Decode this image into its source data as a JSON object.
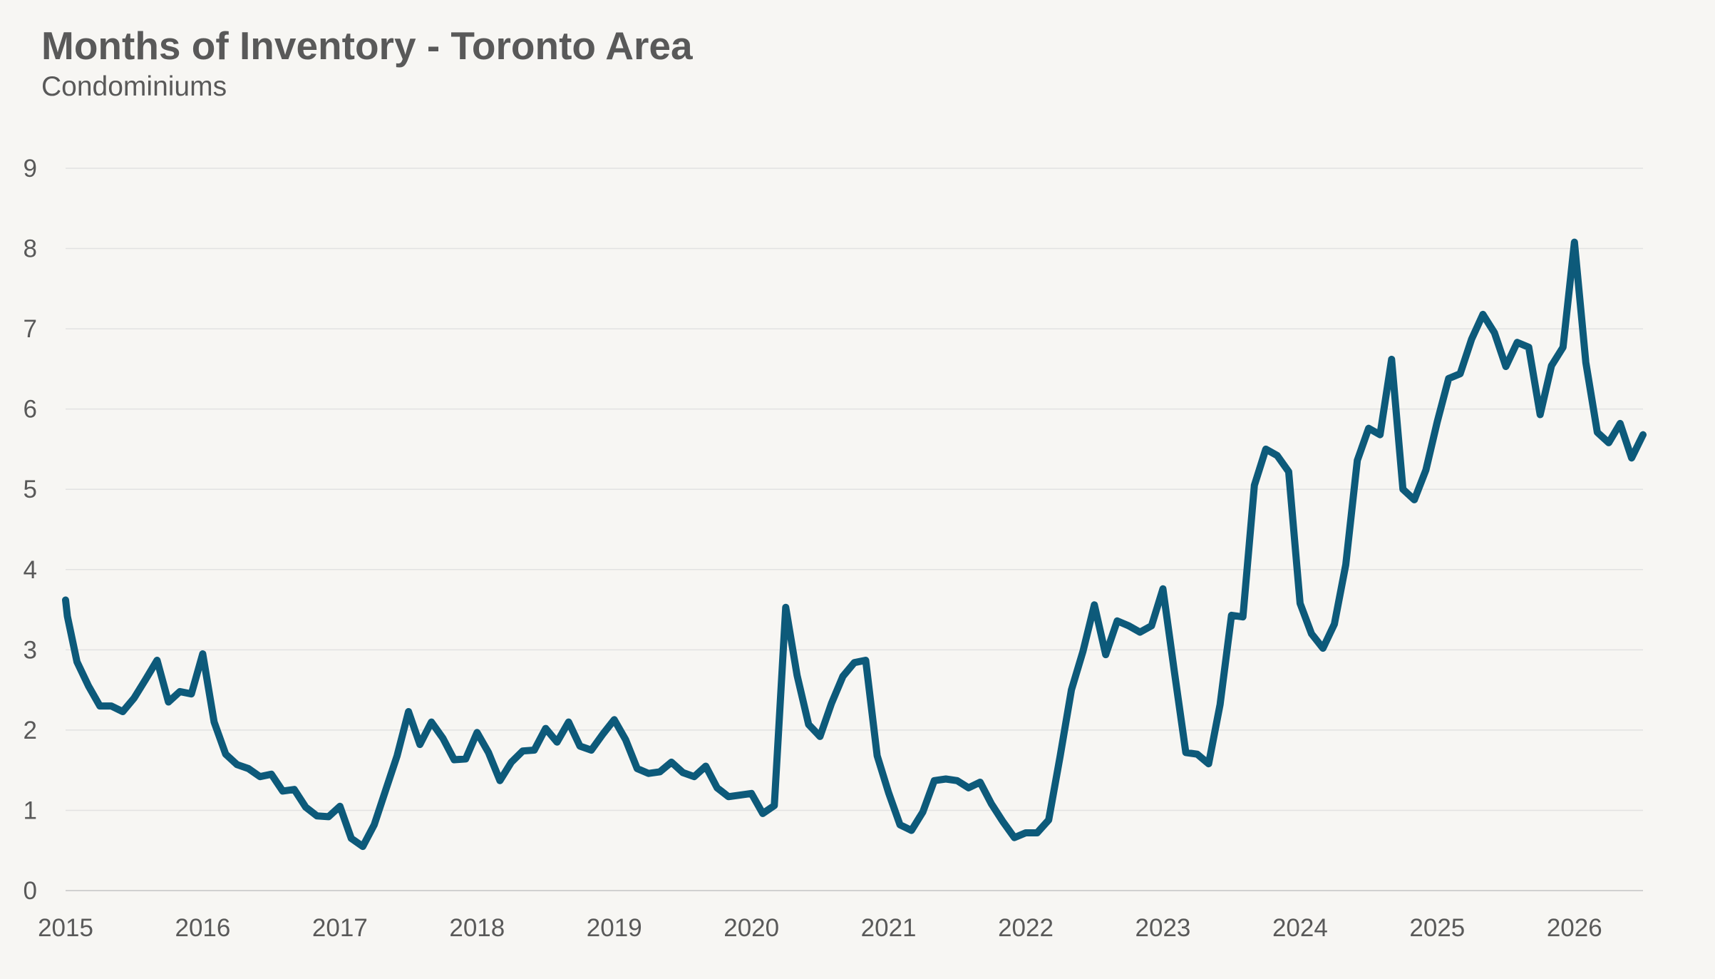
{
  "chart_data": {
    "type": "line",
    "title": "Months of Inventory - Toronto Area",
    "subtitle": "Condominiums",
    "xlabel": "",
    "ylabel": "",
    "ylim": [
      0,
      9
    ],
    "y_ticks": [
      0,
      1,
      2,
      3,
      4,
      5,
      6,
      7,
      8,
      9
    ],
    "x_range": [
      2015,
      2026.5
    ],
    "x_tick_labels": [
      "2015",
      "2016",
      "2017",
      "2018",
      "2019",
      "2020",
      "2021",
      "2022",
      "2023",
      "2024",
      "2025",
      "2026"
    ],
    "grid": "horizontal",
    "legend": "none",
    "line_color": "#0d5a7a",
    "series": [
      {
        "x": [
          2015.0,
          2015.013,
          2015.083,
          2015.167,
          2015.25,
          2015.333,
          2015.417,
          2015.5,
          2015.583,
          2015.667,
          2015.75,
          2015.833,
          2015.917,
          2016.0,
          2016.083,
          2016.167,
          2016.25,
          2016.333,
          2016.417,
          2016.5,
          2016.583,
          2016.667,
          2016.75,
          2016.833,
          2016.917,
          2017.0,
          2017.083,
          2017.167,
          2017.25,
          2017.333,
          2017.417,
          2017.5,
          2017.583,
          2017.667,
          2017.75,
          2017.833,
          2017.917,
          2018.0,
          2018.083,
          2018.167,
          2018.25,
          2018.333,
          2018.417,
          2018.5,
          2018.583,
          2018.667,
          2018.75,
          2018.833,
          2018.917,
          2019.0,
          2019.083,
          2019.167,
          2019.25,
          2019.333,
          2019.417,
          2019.5,
          2019.583,
          2019.667,
          2019.75,
          2019.833,
          2019.917,
          2020.0,
          2020.083,
          2020.167,
          2020.25,
          2020.333,
          2020.417,
          2020.5,
          2020.583,
          2020.667,
          2020.75,
          2020.833,
          2020.917,
          2021.0,
          2021.083,
          2021.167,
          2021.25,
          2021.333,
          2021.417,
          2021.5,
          2021.583,
          2021.667,
          2021.75,
          2021.833,
          2021.917,
          2022.0,
          2022.083,
          2022.167,
          2022.25,
          2022.333,
          2022.417,
          2022.5,
          2022.583,
          2022.667,
          2022.75,
          2022.833,
          2022.917,
          2023.0,
          2023.083,
          2023.167,
          2023.25,
          2023.333,
          2023.417,
          2023.5,
          2023.583,
          2023.667,
          2023.75,
          2023.833,
          2023.917,
          2024.0,
          2024.083,
          2024.167,
          2024.25,
          2024.333,
          2024.417,
          2024.5,
          2024.583,
          2024.667,
          2024.75,
          2024.833,
          2024.917,
          2025.0,
          2025.083,
          2025.167,
          2025.25,
          2025.333,
          2025.417,
          2025.5,
          2025.583,
          2025.667,
          2025.75,
          2025.833,
          2025.917,
          2026.0,
          2026.083,
          2026.167,
          2026.25,
          2026.333,
          2026.417,
          2026.5
        ],
        "y": [
          3.62,
          3.42,
          2.85,
          2.55,
          2.3,
          2.3,
          2.23,
          2.4,
          2.63,
          2.87,
          2.35,
          2.48,
          2.45,
          2.95,
          2.1,
          1.7,
          1.57,
          1.52,
          1.42,
          1.45,
          1.24,
          1.26,
          1.04,
          0.93,
          0.92,
          1.05,
          0.65,
          0.55,
          0.82,
          1.25,
          1.68,
          2.23,
          1.82,
          2.1,
          1.9,
          1.63,
          1.64,
          1.97,
          1.72,
          1.37,
          1.6,
          1.74,
          1.75,
          2.02,
          1.85,
          2.1,
          1.8,
          1.75,
          1.95,
          2.13,
          1.88,
          1.52,
          1.46,
          1.48,
          1.6,
          1.47,
          1.42,
          1.55,
          1.28,
          1.17,
          1.19,
          1.21,
          0.96,
          1.06,
          3.53,
          2.68,
          2.07,
          1.92,
          2.33,
          2.67,
          2.84,
          2.87,
          1.68,
          1.22,
          0.82,
          0.75,
          0.98,
          1.37,
          1.39,
          1.37,
          1.28,
          1.35,
          1.08,
          0.86,
          0.66,
          0.72,
          0.72,
          0.88,
          1.67,
          2.5,
          2.98,
          3.56,
          2.94,
          3.36,
          3.3,
          3.22,
          3.3,
          3.76,
          2.73,
          1.72,
          1.7,
          1.58,
          2.32,
          3.43,
          3.41,
          5.05,
          5.5,
          5.42,
          5.22,
          3.58,
          3.2,
          3.02,
          3.32,
          4.06,
          5.36,
          5.76,
          5.68,
          6.62,
          5.0,
          4.87,
          5.24,
          5.84,
          6.38,
          6.44,
          6.87,
          7.18,
          6.95,
          6.53,
          6.83,
          6.77,
          5.93,
          6.54,
          6.77,
          8.08,
          6.58,
          5.71,
          5.58,
          5.82,
          5.39,
          5.68
        ]
      }
    ]
  }
}
